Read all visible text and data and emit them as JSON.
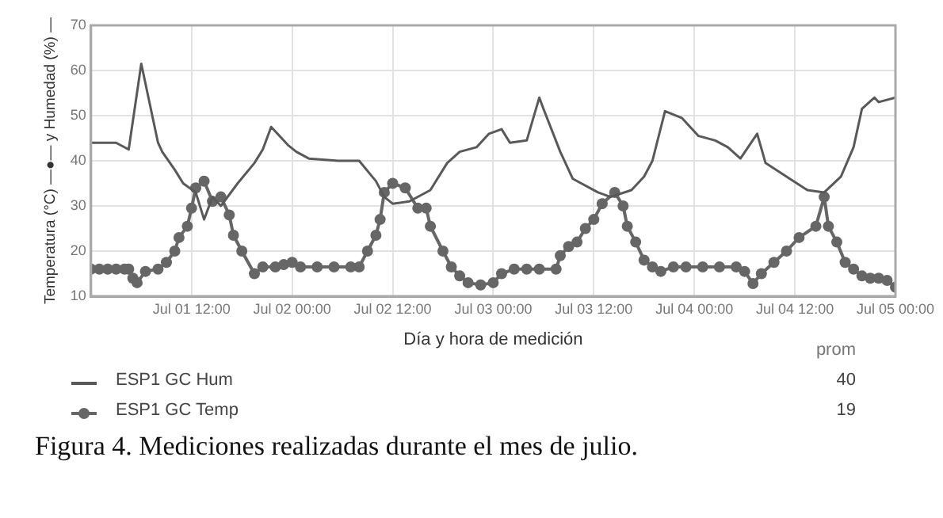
{
  "chart_data": {
    "type": "line",
    "xlabel": "Día y hora de medición",
    "ylabel": "Temperatura (°C) —●— y Humedad (%) —",
    "xlim": [
      "--07-01T00:00",
      "--07-05T00:00"
    ],
    "xticks": [
      {
        "value": "--07-01T12:00",
        "label": "Jul 01 12:00"
      },
      {
        "value": "--07-02T00:00",
        "label": "Jul 02 00:00"
      },
      {
        "value": "--07-02T12:00",
        "label": "Jul 02 12:00"
      },
      {
        "value": "--07-03T00:00",
        "label": "Jul 03 00:00"
      },
      {
        "value": "--07-03T12:00",
        "label": "Jul 03 12:00"
      },
      {
        "value": "--07-04T00:00",
        "label": "Jul 04 00:00"
      },
      {
        "value": "--07-04T12:00",
        "label": "Jul 04 12:00"
      },
      {
        "value": "--07-05T00:00",
        "label": "Jul 05 00:00"
      }
    ],
    "ylim": [
      10,
      70
    ],
    "yticks": [
      10,
      20,
      30,
      40,
      50,
      60,
      70
    ],
    "grid": true,
    "legend": "bottom",
    "annotations": [
      "prom",
      "40",
      "19",
      "Figura 4. Mediciones realizadas durante el mes de julio."
    ],
    "series": [
      {
        "name": "ESP1 GC Hum",
        "color": "#595959",
        "marker": "none",
        "x": [
          "--07-01T00:00",
          "--07-01T03:00",
          "--07-01T04:30",
          "--07-01T06:00",
          "--07-01T08:00",
          "--07-01T08:30",
          "--07-01T10:00",
          "--07-01T11:00",
          "--07-01T12:30",
          "--07-01T13:30",
          "--07-01T14:30",
          "--07-01T15:30",
          "--07-01T17:30",
          "--07-01T19:30",
          "--07-01T20:30",
          "--07-01T21:30",
          "--07-01T23:30",
          "--07-02T00:30",
          "--07-02T02:00",
          "--07-02T05:30",
          "--07-02T08:00",
          "--07-02T10:00",
          "--07-02T11:00",
          "--07-02T12:00",
          "--07-02T14:00",
          "--07-02T16:30",
          "--07-02T18:30",
          "--07-02T20:00",
          "--07-02T22:00",
          "--07-02T23:30",
          "--07-03T01:00",
          "--07-03T02:00",
          "--07-03T04:00",
          "--07-03T05:30",
          "--07-03T06:00",
          "--07-03T08:00",
          "--07-03T09:30",
          "--07-03T12:30",
          "--07-03T14:00",
          "--07-03T16:30",
          "--07-03T18:00",
          "--07-03T19:00",
          "--07-03T20:30",
          "--07-03T22:30",
          "--07-04T00:30",
          "--07-04T02:30",
          "--07-04T04:00",
          "--07-04T05:30",
          "--07-04T07:30",
          "--07-04T08:30",
          "--07-04T11:00",
          "--07-04T13:30",
          "--07-04T15:30",
          "--07-04T17:30",
          "--07-04T19:00",
          "--07-04T20:00",
          "--07-04T21:30",
          "--07-04T22:00",
          "--07-05T00:00"
        ],
        "values": [
          44,
          44,
          42.5,
          61.5,
          44,
          42,
          38,
          35,
          33,
          27,
          32,
          30,
          35,
          39.5,
          42.5,
          47.5,
          43.5,
          42,
          40.5,
          40,
          40,
          35.5,
          32,
          30.5,
          31,
          33.5,
          39.5,
          42,
          43,
          46,
          47,
          44,
          44.5,
          54,
          51.5,
          42,
          36,
          33,
          32,
          33.5,
          36.5,
          40,
          51,
          49.5,
          45.5,
          44.5,
          43,
          40.5,
          46,
          39.5,
          36.5,
          33.5,
          33,
          36.5,
          43,
          51.5,
          54,
          53,
          54
        ]
      },
      {
        "name": "ESP1 GC Temp",
        "color": "#666666",
        "marker": "circle",
        "x": [
          "--07-01T00:00",
          "--07-01T01:00",
          "--07-01T02:00",
          "--07-01T03:00",
          "--07-01T04:00",
          "--07-01T04:30",
          "--07-01T05:00",
          "--07-01T05:30",
          "--07-01T06:30",
          "--07-01T08:00",
          "--07-01T09:00",
          "--07-01T10:00",
          "--07-01T10:30",
          "--07-01T11:30",
          "--07-01T12:00",
          "--07-01T12:30",
          "--07-01T13:30",
          "--07-01T14:30",
          "--07-01T15:30",
          "--07-01T16:30",
          "--07-01T17:00",
          "--07-01T18:00",
          "--07-01T19:30",
          "--07-01T20:30",
          "--07-01T22:00",
          "--07-01T23:00",
          "--07-02T00:00",
          "--07-02T01:00",
          "--07-02T03:00",
          "--07-02T05:00",
          "--07-02T07:00",
          "--07-02T08:00",
          "--07-02T09:00",
          "--07-02T10:00",
          "--07-02T10:30",
          "--07-02T11:00",
          "--07-02T12:00",
          "--07-02T13:30",
          "--07-02T15:00",
          "--07-02T16:00",
          "--07-02T16:30",
          "--07-02T18:00",
          "--07-02T19:00",
          "--07-02T20:00",
          "--07-02T21:00",
          "--07-02T22:30",
          "--07-03T00:00",
          "--07-03T01:00",
          "--07-03T02:30",
          "--07-03T04:00",
          "--07-03T05:30",
          "--07-03T07:30",
          "--07-03T08:00",
          "--07-03T09:00",
          "--07-03T10:00",
          "--07-03T11:00",
          "--07-03T12:00",
          "--07-03T13:00",
          "--07-03T14:30",
          "--07-03T15:30",
          "--07-03T16:00",
          "--07-03T17:00",
          "--07-03T18:00",
          "--07-03T19:00",
          "--07-03T20:00",
          "--07-03T21:30",
          "--07-03T23:00",
          "--07-04T01:00",
          "--07-04T03:00",
          "--07-04T05:00",
          "--07-04T06:00",
          "--07-04T07:00",
          "--07-04T08:00",
          "--07-04T09:30",
          "--07-04T11:00",
          "--07-04T12:30",
          "--07-04T14:30",
          "--07-04T15:30",
          "--07-04T16:00",
          "--07-04T17:00",
          "--07-04T18:00",
          "--07-04T19:00",
          "--07-04T20:00",
          "--07-04T21:00",
          "--07-04T22:00",
          "--07-04T23:00",
          "--07-05T00:00"
        ],
        "values": [
          16,
          16,
          16,
          16,
          16,
          16,
          14,
          13,
          15.5,
          16,
          17.5,
          20,
          23,
          25.5,
          29.5,
          34,
          35.5,
          31,
          32,
          28,
          23.5,
          20,
          15,
          16.5,
          16.5,
          17,
          17.5,
          16.5,
          16.5,
          16.5,
          16.5,
          16.5,
          20,
          23.5,
          27,
          33,
          35,
          34,
          29.5,
          29.5,
          25.5,
          20,
          16.5,
          14.5,
          13,
          12.5,
          13,
          15,
          16,
          16,
          16,
          16,
          19,
          21,
          22,
          25,
          27,
          30.5,
          33,
          30,
          25.5,
          22,
          18,
          16.5,
          15.5,
          16.5,
          16.5,
          16.5,
          16.5,
          16.5,
          15.5,
          12.8,
          15,
          17.5,
          20,
          23,
          25.5,
          32,
          25.5,
          22,
          17.5,
          16,
          14.5,
          14,
          14,
          13.5,
          12
        ]
      }
    ]
  }
}
